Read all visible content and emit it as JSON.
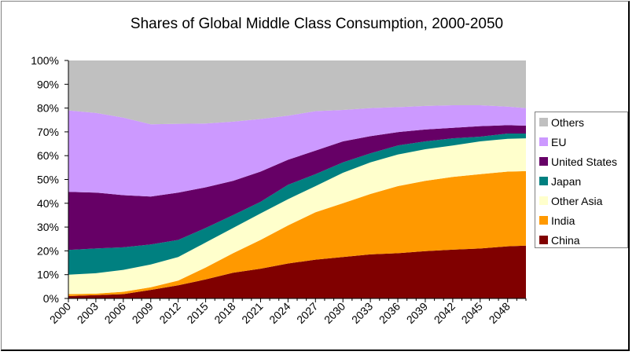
{
  "chart_data": {
    "type": "area",
    "stacked": true,
    "title": "Shares of Global Middle Class Consumption, 2000-2050",
    "xlabel": "",
    "ylabel": "",
    "x": [
      2000,
      2003,
      2006,
      2009,
      2012,
      2015,
      2018,
      2021,
      2024,
      2027,
      2030,
      2033,
      2036,
      2039,
      2042,
      2045,
      2048,
      2050
    ],
    "xlim": [
      2000,
      2050
    ],
    "x_tick_labels": [
      "2000",
      "2003",
      "2006",
      "2009",
      "2012",
      "2015",
      "2018",
      "2021",
      "2024",
      "2027",
      "2030",
      "2033",
      "2036",
      "2039",
      "2042",
      "2045",
      "2048"
    ],
    "ylim": [
      0,
      100
    ],
    "y_tick_labels": [
      "0%",
      "10%",
      "20%",
      "30%",
      "40%",
      "50%",
      "60%",
      "70%",
      "80%",
      "90%",
      "100%"
    ],
    "grid": false,
    "legend_position": "right",
    "series": [
      {
        "name": "China",
        "color": "#800000",
        "values": [
          1,
          1.4,
          1.8,
          3.6,
          5.5,
          8,
          10.8,
          12.5,
          14.7,
          16.3,
          17.4,
          18.5,
          19,
          19.9,
          20.5,
          21,
          21.9,
          22.2
        ]
      },
      {
        "name": "India",
        "color": "#FF9900",
        "values": [
          0.8,
          0.6,
          1,
          1.1,
          2,
          5,
          8.2,
          12.1,
          16,
          19.9,
          22.6,
          25.4,
          28.2,
          29.5,
          30.6,
          31.2,
          31.4,
          31.3
        ]
      },
      {
        "name": "Other Asia",
        "color": "#FFFFCC",
        "values": [
          8.2,
          8.6,
          9.2,
          9.6,
          9.9,
          10.5,
          10.6,
          11.1,
          11,
          11,
          12.8,
          13.3,
          13.3,
          13.3,
          13.2,
          13.8,
          13.8,
          13.8
        ]
      },
      {
        "name": "Japan",
        "color": "#008080",
        "values": [
          10.4,
          10.4,
          9.5,
          8.4,
          7.2,
          6.1,
          5.4,
          4.9,
          6.1,
          5,
          4.4,
          3.8,
          3.8,
          3.3,
          3,
          2,
          2.2,
          2
        ]
      },
      {
        "name": "United States",
        "color": "#660066",
        "values": [
          24.4,
          23.5,
          21.9,
          20.1,
          19.9,
          17.1,
          14.4,
          12.7,
          10.5,
          9.9,
          8.8,
          7.2,
          5.6,
          5,
          4.4,
          4.4,
          3.5,
          3.3
        ]
      },
      {
        "name": "EU",
        "color": "#CC99FF",
        "values": [
          34.2,
          33.5,
          32.6,
          30.4,
          28.9,
          26.8,
          24.9,
          22.1,
          18.5,
          16.6,
          13.2,
          11.8,
          10.5,
          9.9,
          9.5,
          8.8,
          7.8,
          7.4
        ]
      },
      {
        "name": "Others",
        "color": "#C0C0C0",
        "values": [
          21,
          24,
          24,
          26.8,
          26.6,
          26.5,
          25.7,
          24.6,
          23.2,
          21.3,
          20.8,
          20,
          19.6,
          19.1,
          18.8,
          18.8,
          19.4,
          20
        ]
      }
    ],
    "legend_order": [
      "Others",
      "EU",
      "United States",
      "Japan",
      "Other Asia",
      "India",
      "China"
    ]
  }
}
